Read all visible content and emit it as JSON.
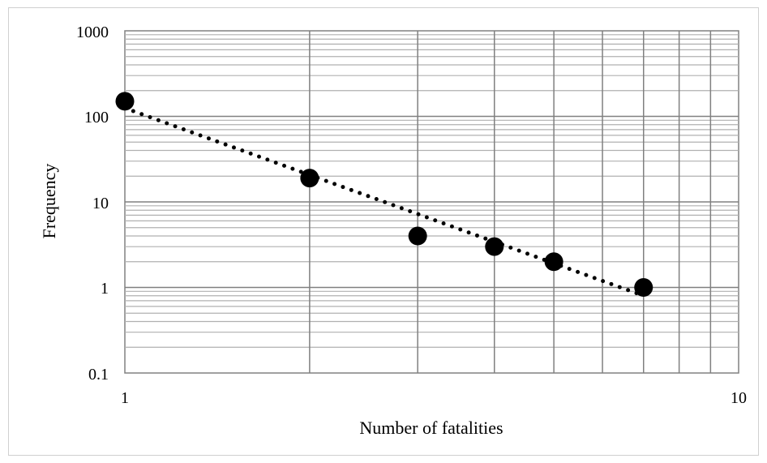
{
  "chart_data": {
    "type": "scatter",
    "title": "",
    "xlabel": "Number of fatalities",
    "ylabel": "Frequency",
    "x_scale": "log",
    "y_scale": "log",
    "xlim": [
      1,
      10
    ],
    "ylim": [
      0.1,
      1000
    ],
    "x_tick_labels": [
      "1",
      "10"
    ],
    "y_tick_labels": [
      "0.1",
      "1",
      "10",
      "100",
      "1000"
    ],
    "grid": true,
    "legend": "none",
    "trendline": {
      "style": "dotted",
      "kind": "power",
      "from": [
        1,
        125
      ],
      "to": [
        7,
        0.8
      ]
    },
    "points": [
      {
        "x": 1,
        "y": 150
      },
      {
        "x": 2,
        "y": 19
      },
      {
        "x": 3,
        "y": 4
      },
      {
        "x": 4,
        "y": 3
      },
      {
        "x": 5,
        "y": 2
      },
      {
        "x": 7,
        "y": 1
      }
    ],
    "colors": {
      "marker": "#000000",
      "grid": "#808080",
      "grid_fine": "#b0b0b0"
    }
  }
}
